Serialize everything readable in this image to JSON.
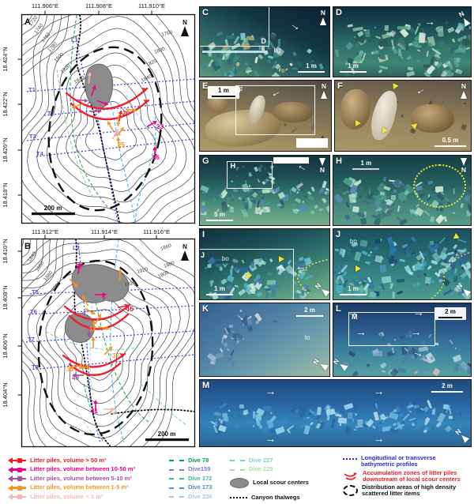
{
  "common": {
    "north_label": "N"
  },
  "map_a": {
    "panel_label": "A",
    "lon_ticks": [
      "111.906°E",
      "111.908°E",
      "111.910°E"
    ],
    "lat_ticks": [
      "18.424°N",
      "18.422°N",
      "18.420°N",
      "18.418°N"
    ],
    "contour_labels": [
      "1720",
      "1740",
      "1760",
      "1780",
      "1800",
      "1820",
      "1840",
      "1760",
      "1800",
      "1820",
      "1840"
    ],
    "profile_labels": {
      "l": "L1",
      "t1": "T1",
      "t2": "T2",
      "t3": "T3",
      "t4": "T4"
    },
    "litter_labels": {
      "n20": "20",
      "n23": "23",
      "n24": "24",
      "n25": "25",
      "n26": "26"
    },
    "scale_text": "200 m"
  },
  "map_b": {
    "panel_label": "B",
    "lon_ticks": [
      "111.912°E",
      "111.914°E",
      "111.916°E"
    ],
    "lat_ticks": [
      "18.410°N",
      "18.408°N",
      "18.406°N",
      "18.404°N"
    ],
    "contour_labels": [
      "1840",
      "1860",
      "1880",
      "1900",
      "1860",
      "1880",
      "1900",
      "1920",
      "1920"
    ],
    "profile_labels": {
      "l": "L2",
      "t5": "T5",
      "t6": "T6",
      "t7": "T7",
      "t8": "T8"
    },
    "litter_labels": {
      "n27": "27",
      "n6": "6",
      "n15": "15",
      "n17": "17",
      "n37": "37",
      "n38": "38",
      "n39": "39",
      "n40": "40",
      "n41": "41",
      "n42": "42"
    },
    "scale_text": "200 m"
  },
  "photos": {
    "c": {
      "label": "C",
      "scale": "1 m",
      "inset_label": "D",
      "annotation": "bg"
    },
    "d": {
      "label": "D",
      "scale": "1 m"
    },
    "e": {
      "label": "E",
      "scale": "1 m",
      "inset_label": "F"
    },
    "f": {
      "label": "F",
      "scale": "0.5 m"
    },
    "g": {
      "label": "G",
      "scale": "5 m",
      "inset_label": "H"
    },
    "h": {
      "label": "H",
      "scale": "1 m"
    },
    "i": {
      "label": "I",
      "scale": "1 m",
      "inset_label": "J",
      "annotation": "bo"
    },
    "j": {
      "label": "J",
      "scale": "1 m",
      "annotation": "bo"
    },
    "k": {
      "label": "K",
      "scale": "2 m",
      "annotation": "to"
    },
    "l": {
      "label": "L",
      "scale": "2 m",
      "inset_label": "M"
    },
    "m": {
      "label": "M",
      "scale": "2 m"
    }
  },
  "legend": {
    "litter": [
      {
        "label": "Litter piles, volume > 50 m³",
        "color": "#ed1c24"
      },
      {
        "label": "Litter piles, volume between 10-50 m³",
        "color": "#ec008c"
      },
      {
        "label": "Litter piles, volume between 5-10 m³",
        "color": "#a5509c"
      },
      {
        "label": "Litter piles, volume between 1-5 m³",
        "color": "#f7941d"
      },
      {
        "label": "Litter piles, volume < 1 m³",
        "color": "#f8b6b0"
      }
    ],
    "dives": [
      {
        "label": "Dive 78",
        "color": "#00a651"
      },
      {
        "label": "Dive159",
        "color": "#7d7ccc"
      },
      {
        "label": "Dive 172",
        "color": "#3eb79e"
      },
      {
        "label": "Dive 173",
        "color": "#4b8fdd"
      },
      {
        "label": "Dive 226",
        "color": "#9ecdf0"
      },
      {
        "label": "Dive 227",
        "color": "#79d2d2"
      },
      {
        "label": "Dive 228",
        "color": "#abdcab"
      }
    ],
    "scour_label": "Local scour centers",
    "thalweg_label": "Canyon thalwegs",
    "profiles_label": "Longitudinal or transverse bathymetric profiles",
    "profiles_color": "#2b2bd0",
    "accumulation_label": "Accumulation zones of litter piles downstream of local scour centers",
    "accumulation_color": "#ed1c24",
    "distribution_label": "Distribution areas of high density scattered litter items"
  }
}
